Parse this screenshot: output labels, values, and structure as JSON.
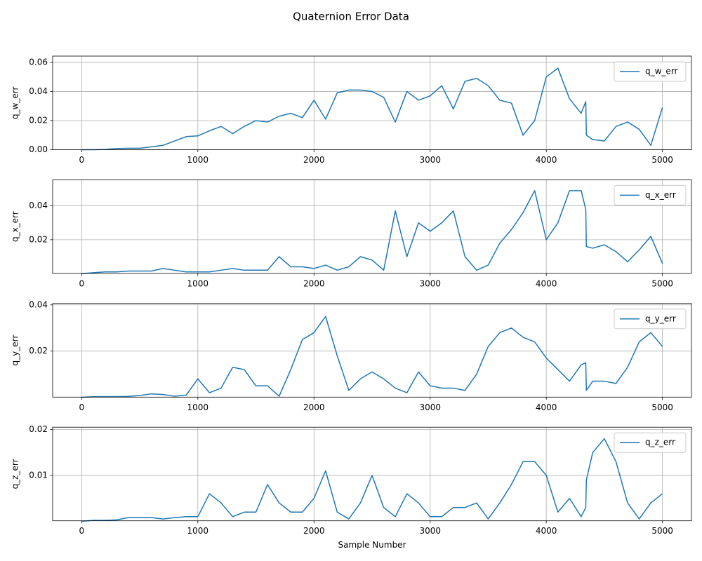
{
  "title": "Quaternion Error Data",
  "chart_data": [
    {
      "type": "line",
      "y_label": "q_w_err",
      "x": [
        0,
        100,
        200,
        300,
        400,
        500,
        600,
        700,
        800,
        900,
        1000,
        1100,
        1200,
        1300,
        1400,
        1500,
        1600,
        1700,
        1800,
        1900,
        2000,
        2100,
        2200,
        2300,
        2400,
        2500,
        2600,
        2700,
        2800,
        2900,
        3000,
        3100,
        3200,
        3300,
        3400,
        3500,
        3600,
        3700,
        3800,
        3900,
        4000,
        4100,
        4200,
        4300,
        4340,
        4345,
        4400,
        4500,
        4600,
        4700,
        4800,
        4900,
        5000
      ],
      "series": [
        {
          "name": "q_w_err",
          "color": "#1f77b4",
          "values": [
            0,
            0,
            0.0002,
            0.0008,
            0.001,
            0.001,
            0.002,
            0.003,
            0.006,
            0.009,
            0.0095,
            0.013,
            0.016,
            0.011,
            0.016,
            0.02,
            0.019,
            0.023,
            0.025,
            0.022,
            0.034,
            0.021,
            0.039,
            0.041,
            0.041,
            0.04,
            0.036,
            0.019,
            0.04,
            0.034,
            0.037,
            0.044,
            0.028,
            0.047,
            0.049,
            0.044,
            0.034,
            0.032,
            0.01,
            0.02,
            0.05,
            0.056,
            0.035,
            0.025,
            0.033,
            0.01,
            0.007,
            0.006,
            0.016,
            0.019,
            0.014,
            0.003,
            0.029
          ]
        }
      ],
      "xlim": [
        -250,
        5250
      ],
      "ylim": [
        0,
        0.0643
      ],
      "xticks": [
        0,
        1000,
        2000,
        3000,
        4000,
        5000
      ],
      "yticks": [
        {
          "value": 0,
          "label": "0.00"
        },
        0.02,
        0.04,
        0.06
      ],
      "grid": true,
      "legend": "upper right"
    },
    {
      "type": "line",
      "y_label": "q_x_err",
      "x": [
        0,
        100,
        200,
        300,
        400,
        500,
        600,
        700,
        800,
        900,
        1000,
        1100,
        1200,
        1300,
        1400,
        1500,
        1600,
        1700,
        1800,
        1900,
        2000,
        2100,
        2200,
        2300,
        2400,
        2500,
        2600,
        2700,
        2800,
        2900,
        3000,
        3100,
        3200,
        3300,
        3400,
        3500,
        3600,
        3700,
        3800,
        3900,
        4000,
        4100,
        4200,
        4300,
        4340,
        4345,
        4400,
        4500,
        4600,
        4700,
        4800,
        4900,
        5000
      ],
      "series": [
        {
          "name": "q_x_err",
          "color": "#1f77b4",
          "values": [
            0,
            0.0005,
            0.001,
            0.001,
            0.0015,
            0.0015,
            0.0015,
            0.003,
            0.002,
            0.001,
            0.001,
            0.001,
            0.002,
            0.003,
            0.002,
            0.002,
            0.002,
            0.01,
            0.004,
            0.004,
            0.003,
            0.005,
            0.002,
            0.004,
            0.01,
            0.008,
            0.002,
            0.037,
            0.01,
            0.03,
            0.025,
            0.03,
            0.037,
            0.01,
            0.002,
            0.005,
            0.018,
            0.026,
            0.036,
            0.049,
            0.02,
            0.03,
            0.049,
            0.049,
            0.038,
            0.016,
            0.015,
            0.017,
            0.013,
            0.007,
            0.014,
            0.022,
            0.006
          ]
        }
      ],
      "xlim": [
        -250,
        5250
      ],
      "ylim": [
        0.0001,
        0.0554
      ],
      "xticks": [
        0,
        1000,
        2000,
        3000,
        4000,
        5000
      ],
      "yticks": [
        0.02,
        0.04
      ],
      "grid": true,
      "legend": "upper right"
    },
    {
      "type": "line",
      "y_label": "q_y_err",
      "x": [
        0,
        100,
        200,
        300,
        400,
        500,
        600,
        700,
        800,
        900,
        1000,
        1100,
        1200,
        1300,
        1400,
        1500,
        1600,
        1700,
        1800,
        1900,
        2000,
        2100,
        2200,
        2300,
        2400,
        2500,
        2600,
        2700,
        2800,
        2900,
        3000,
        3100,
        3200,
        3300,
        3400,
        3500,
        3600,
        3700,
        3800,
        3900,
        4000,
        4100,
        4200,
        4300,
        4340,
        4345,
        4400,
        4500,
        4600,
        4700,
        4800,
        4900,
        5000
      ],
      "series": [
        {
          "name": "q_y_err",
          "color": "#1f77b4",
          "values": [
            0,
            0.0003,
            0.0003,
            0.0003,
            0.0004,
            0.0008,
            0.0015,
            0.0012,
            0.0005,
            0.001,
            0.008,
            0.002,
            0.004,
            0.013,
            0.012,
            0.005,
            0.005,
            0.0005,
            0.012,
            0.025,
            0.028,
            0.035,
            0.018,
            0.003,
            0.008,
            0.011,
            0.008,
            0.004,
            0.002,
            0.011,
            0.005,
            0.004,
            0.004,
            0.003,
            0.01,
            0.022,
            0.028,
            0.03,
            0.026,
            0.024,
            0.017,
            0.012,
            0.007,
            0.014,
            0.015,
            0.003,
            0.007,
            0.007,
            0.006,
            0.013,
            0.024,
            0.028,
            0.022
          ]
        }
      ],
      "xlim": [
        -250,
        5250
      ],
      "ylim": [
        0.0001,
        0.0406
      ],
      "xticks": [
        0,
        1000,
        2000,
        3000,
        4000,
        5000
      ],
      "yticks": [
        0.02,
        0.04
      ],
      "grid": true,
      "legend": "upper right"
    },
    {
      "type": "line",
      "y_label": "q_z_err",
      "x_label": "Sample Number",
      "x": [
        0,
        100,
        200,
        300,
        400,
        500,
        600,
        700,
        800,
        900,
        1000,
        1100,
        1200,
        1300,
        1400,
        1500,
        1600,
        1700,
        1800,
        1900,
        2000,
        2100,
        2200,
        2300,
        2400,
        2500,
        2600,
        2700,
        2800,
        2900,
        3000,
        3100,
        3200,
        3300,
        3400,
        3500,
        3600,
        3700,
        3800,
        3900,
        4000,
        4100,
        4200,
        4300,
        4340,
        4345,
        4400,
        4500,
        4600,
        4700,
        4800,
        4900,
        5000
      ],
      "series": [
        {
          "name": "q_z_err",
          "color": "#1f77b4",
          "values": [
            0,
            0.0002,
            0.0002,
            0.0003,
            0.0008,
            0.0008,
            0.0008,
            0.0005,
            0.0008,
            0.001,
            0.001,
            0.006,
            0.004,
            0.001,
            0.002,
            0.002,
            0.008,
            0.004,
            0.002,
            0.002,
            0.005,
            0.011,
            0.002,
            0.0005,
            0.004,
            0.01,
            0.003,
            0.001,
            0.006,
            0.004,
            0.001,
            0.001,
            0.003,
            0.003,
            0.004,
            0.0005,
            0.004,
            0.008,
            0.013,
            0.013,
            0.01,
            0.002,
            0.005,
            0.001,
            0.003,
            0.009,
            0.015,
            0.018,
            0.013,
            0.004,
            0.0005,
            0.004,
            0.006
          ]
        }
      ],
      "xlim": [
        -250,
        5250
      ],
      "ylim": [
        0.0001,
        0.0205
      ],
      "xticks": [
        0,
        1000,
        2000,
        3000,
        4000,
        5000
      ],
      "yticks": [
        0.01,
        0.02
      ],
      "grid": true,
      "legend": "upper right"
    }
  ]
}
